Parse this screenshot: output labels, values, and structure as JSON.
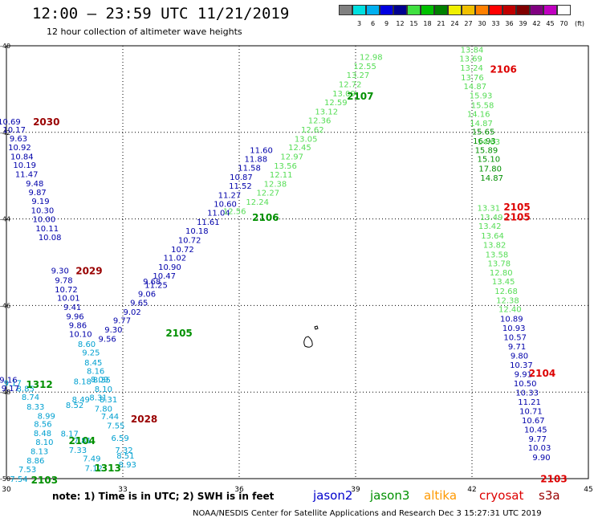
{
  "header": {
    "title": "12:00 — 23:59 UTC 11/21/2019",
    "subtitle": "12 hour collection of altimeter wave heights"
  },
  "scale": {
    "unit": "(ft)",
    "items": [
      {
        "label": "",
        "color": "#808080"
      },
      {
        "label": "3",
        "color": "#00e0e0"
      },
      {
        "label": "6",
        "color": "#00b0f0"
      },
      {
        "label": "9",
        "color": "#0000e0"
      },
      {
        "label": "12",
        "color": "#000090"
      },
      {
        "label": "15",
        "color": "#40e040"
      },
      {
        "label": "18",
        "color": "#00c000"
      },
      {
        "label": "21",
        "color": "#008000"
      },
      {
        "label": "24",
        "color": "#f0f000"
      },
      {
        "label": "27",
        "color": "#f0c000"
      },
      {
        "label": "30",
        "color": "#ff8000"
      },
      {
        "label": "33",
        "color": "#ff0000"
      },
      {
        "label": "36",
        "color": "#c00000"
      },
      {
        "label": "39",
        "color": "#800000"
      },
      {
        "label": "42",
        "color": "#800080"
      },
      {
        "label": "45",
        "color": "#c000c0"
      },
      {
        "label": "70",
        "color": "#ffffff"
      }
    ]
  },
  "note": "note:  1) Time is in UTC;  2) SWH is in feet",
  "satellites": [
    {
      "name": "jason2",
      "color": "#0000cc"
    },
    {
      "name": "jason3",
      "color": "#009000"
    },
    {
      "name": "altika",
      "color": "#ff9900"
    },
    {
      "name": "cryosat",
      "color": "#dd0000"
    },
    {
      "name": "s3a",
      "color": "#990000"
    }
  ],
  "footer": "NOAA/NESDIS Center for Satellite Applications and Research    Dec  3 15:27:31 UTC 2019",
  "chart_data": {
    "type": "scatter",
    "x_ticks": [
      "30",
      "33",
      "36",
      "39",
      "42",
      "45"
    ],
    "y_ticks": [
      "-40",
      "-42",
      "-44",
      "-46",
      "-48",
      "-50"
    ],
    "xlim": [
      30,
      45
    ],
    "ylim": [
      -50,
      -40
    ],
    "grid": true,
    "time_labels": [
      {
        "text": "2030",
        "lon": 31.03,
        "lat": -41.74,
        "color": "#990000"
      },
      {
        "text": "2029",
        "lon": 32.13,
        "lat": -45.19,
        "color": "#990000"
      },
      {
        "text": "2028",
        "lon": 33.55,
        "lat": -48.61,
        "color": "#990000"
      },
      {
        "text": "1312",
        "lon": 30.85,
        "lat": -47.81,
        "color": "#009000"
      },
      {
        "text": "2104",
        "lon": 31.95,
        "lat": -49.11,
        "color": "#009000"
      },
      {
        "text": "1313",
        "lon": 32.61,
        "lat": -49.74,
        "color": "#009000"
      },
      {
        "text": "2103",
        "lon": 30.98,
        "lat": -50.02,
        "color": "#009000"
      },
      {
        "text": "2105",
        "lon": 34.45,
        "lat": -46.62,
        "color": "#009000"
      },
      {
        "text": "2106",
        "lon": 36.68,
        "lat": -43.95,
        "color": "#009000"
      },
      {
        "text": "2107",
        "lon": 39.12,
        "lat": -41.15,
        "color": "#009000"
      },
      {
        "text": "2106",
        "lon": 42.81,
        "lat": -40.53,
        "color": "#dd0000"
      },
      {
        "text": "2105",
        "lon": 43.16,
        "lat": -43.71,
        "color": "#dd0000"
      },
      {
        "text": "2105",
        "lon": 43.16,
        "lat": -43.94,
        "color": "#dd0000"
      },
      {
        "text": "2104",
        "lon": 43.81,
        "lat": -47.55,
        "color": "#dd0000"
      },
      {
        "text": "2103",
        "lon": 44.11,
        "lat": -49.99,
        "color": "#dd0000"
      }
    ],
    "series": [
      {
        "name": "track-w-left",
        "color": "#0000aa",
        "points": [
          [
            30.07,
            -41.74,
            "10.69"
          ],
          [
            30.2,
            -41.93,
            "10.17"
          ],
          [
            30.31,
            -42.13,
            "9.63"
          ],
          [
            30.34,
            -42.34,
            "10.92"
          ],
          [
            30.4,
            -42.55,
            "10.84"
          ],
          [
            30.47,
            -42.75,
            "10.19"
          ],
          [
            30.52,
            -42.96,
            "11.47"
          ],
          [
            30.73,
            -43.17,
            "9.48"
          ],
          [
            30.8,
            -43.38,
            "9.87"
          ],
          [
            30.88,
            -43.58,
            "9.19"
          ],
          [
            30.93,
            -43.79,
            "10.30"
          ],
          [
            30.97,
            -44.0,
            "10.00"
          ],
          [
            31.05,
            -44.21,
            "10.11"
          ],
          [
            31.12,
            -44.42,
            "10.08"
          ],
          [
            31.38,
            -45.19,
            "9.30"
          ],
          [
            31.48,
            -45.41,
            "9.78"
          ],
          [
            31.54,
            -45.62,
            "10.72"
          ],
          [
            31.6,
            -45.82,
            "10.01"
          ],
          [
            31.7,
            -46.03,
            "9.41"
          ],
          [
            31.77,
            -46.24,
            "9.96"
          ],
          [
            31.84,
            -46.45,
            "9.86"
          ],
          [
            31.91,
            -46.65,
            "10.10"
          ]
        ]
      },
      {
        "name": "track-w-cyan",
        "color": "#00a0d0",
        "points": [
          [
            32.07,
            -46.88,
            "8.60"
          ],
          [
            32.18,
            -47.08,
            "9.25"
          ],
          [
            32.24,
            -47.31,
            "8.45"
          ],
          [
            32.3,
            -47.5,
            "8.16"
          ],
          [
            32.4,
            -47.7,
            "8.09"
          ],
          [
            32.46,
            -47.71,
            "8.35"
          ],
          [
            32.5,
            -47.92,
            "8.10"
          ],
          [
            32.37,
            -48.12,
            "8.31"
          ],
          [
            32.63,
            -48.16,
            "8.31"
          ],
          [
            32.5,
            -48.38,
            "7.80"
          ],
          [
            32.67,
            -48.55,
            "7.44"
          ],
          [
            32.82,
            -48.77,
            "7.55"
          ],
          [
            32.93,
            -49.05,
            "6.59"
          ],
          [
            33.03,
            -49.33,
            "7.32"
          ],
          [
            33.07,
            -49.46,
            "8.51"
          ],
          [
            33.12,
            -49.67,
            "8.93"
          ]
        ]
      },
      {
        "name": "track-sw-cyan",
        "color": "#00a0d0",
        "points": [
          [
            30.16,
            -47.78,
            "9.17"
          ],
          [
            30.49,
            -47.91,
            "8.85"
          ],
          [
            30.62,
            -48.11,
            "8.74"
          ],
          [
            30.75,
            -48.33,
            "8.33"
          ],
          [
            31.03,
            -48.54,
            "8.99"
          ],
          [
            30.94,
            -48.73,
            "8.56"
          ],
          [
            30.93,
            -48.94,
            "8.48"
          ],
          [
            30.98,
            -49.15,
            "8.10"
          ],
          [
            30.85,
            -49.36,
            "8.13"
          ],
          [
            30.75,
            -49.57,
            "8.86"
          ],
          [
            30.54,
            -49.78,
            "7.53"
          ],
          [
            30.32,
            -50.0,
            "7.54"
          ],
          [
            31.76,
            -48.29,
            "8.52"
          ],
          [
            31.92,
            -48.16,
            "8.49"
          ],
          [
            31.96,
            -47.75,
            "8.18"
          ],
          [
            31.63,
            -48.95,
            "8.17"
          ],
          [
            31.96,
            -49.11,
            "7.81"
          ],
          [
            31.84,
            -49.33,
            "7.33"
          ],
          [
            32.2,
            -49.53,
            "7.49"
          ],
          [
            32.25,
            -49.75,
            "7.12"
          ]
        ]
      },
      {
        "name": "track-sw-blue",
        "color": "#0000aa",
        "points": [
          [
            30.05,
            -47.71,
            "9.16"
          ],
          [
            30.1,
            -47.9,
            "9.17"
          ]
        ]
      },
      {
        "name": "track-diag-jason2",
        "color": "#0000aa",
        "points": [
          [
            32.6,
            -46.76,
            "9.56"
          ],
          [
            32.76,
            -46.55,
            "9.30"
          ],
          [
            32.98,
            -46.34,
            "9.77"
          ],
          [
            33.24,
            -46.14,
            "9.02"
          ],
          [
            33.42,
            -45.93,
            "9.65"
          ],
          [
            33.62,
            -45.72,
            "9.06"
          ],
          [
            33.86,
            -45.52,
            "11.25"
          ],
          [
            34.07,
            -45.31,
            "10.47"
          ],
          [
            34.21,
            -45.1,
            "10.90"
          ],
          [
            34.34,
            -44.89,
            "11.02"
          ],
          [
            34.54,
            -44.69,
            "10.72"
          ],
          [
            34.72,
            -44.48,
            "10.72"
          ],
          [
            34.91,
            -44.27,
            "10.18"
          ],
          [
            35.2,
            -44.06,
            "11.61"
          ],
          [
            35.47,
            -43.85,
            "11.04"
          ],
          [
            35.64,
            -43.65,
            "10.60"
          ],
          [
            35.75,
            -43.44,
            "11.27"
          ],
          [
            36.03,
            -43.23,
            "11.52"
          ],
          [
            36.05,
            -43.02,
            "10.87"
          ],
          [
            36.26,
            -42.81,
            "11.58"
          ],
          [
            36.43,
            -42.61,
            "11.88"
          ],
          [
            36.57,
            -42.4,
            "11.60"
          ],
          [
            33.75,
            -45.44,
            "9.68"
          ]
        ]
      },
      {
        "name": "track-diag-jason3",
        "color": "#55dd55",
        "points": [
          [
            35.88,
            -43.81,
            "12.56"
          ],
          [
            36.47,
            -43.6,
            "12.24"
          ],
          [
            36.74,
            -43.39,
            "12.27"
          ],
          [
            36.93,
            -43.18,
            "12.38"
          ],
          [
            37.08,
            -42.97,
            "12.11"
          ],
          [
            37.19,
            -42.76,
            "13.56"
          ],
          [
            37.36,
            -42.55,
            "12.97"
          ],
          [
            37.56,
            -42.34,
            "12.45"
          ],
          [
            37.72,
            -42.14,
            "13.05"
          ],
          [
            37.89,
            -41.93,
            "12.62"
          ],
          [
            38.07,
            -41.72,
            "12.36"
          ],
          [
            38.25,
            -41.51,
            "13.12"
          ],
          [
            38.49,
            -41.3,
            "12.59"
          ],
          [
            38.7,
            -41.09,
            "13.09"
          ],
          [
            38.86,
            -40.88,
            "12.72"
          ],
          [
            39.06,
            -40.67,
            "13.27"
          ],
          [
            39.24,
            -40.46,
            "12.55"
          ],
          [
            39.4,
            -40.25,
            "12.98"
          ]
        ]
      },
      {
        "name": "track-e-light",
        "color": "#55dd55",
        "points": [
          [
            42.0,
            -40.08,
            "13.84"
          ],
          [
            41.97,
            -40.29,
            "13.69"
          ],
          [
            41.99,
            -40.5,
            "13.24"
          ],
          [
            42.01,
            -40.72,
            "13.76"
          ],
          [
            42.08,
            -40.93,
            "14.87"
          ],
          [
            42.23,
            -41.14,
            "15.93"
          ],
          [
            42.27,
            -41.36,
            "15.58"
          ],
          [
            42.17,
            -41.57,
            "14.16"
          ],
          [
            42.24,
            -41.78,
            "14.87"
          ],
          [
            42.43,
            -42.21,
            "14.63"
          ],
          [
            42.43,
            -43.74,
            "13.31"
          ],
          [
            42.5,
            -43.95,
            "13.49"
          ],
          [
            42.46,
            -44.16,
            "13.42"
          ],
          [
            42.53,
            -44.38,
            "13.64"
          ],
          [
            42.58,
            -44.59,
            "13.82"
          ],
          [
            42.64,
            -44.81,
            "13.58"
          ],
          [
            42.7,
            -45.02,
            "13.78"
          ],
          [
            42.75,
            -45.23,
            "12.80"
          ],
          [
            42.81,
            -45.44,
            "13.45"
          ],
          [
            42.88,
            -45.66,
            "12.68"
          ],
          [
            42.92,
            -45.87,
            "12.38"
          ],
          [
            42.98,
            -46.08,
            "12.40"
          ]
        ]
      },
      {
        "name": "track-e-green",
        "color": "#009000",
        "points": [
          [
            42.29,
            -41.98,
            "15.65"
          ],
          [
            42.32,
            -42.19,
            "16.93"
          ],
          [
            42.37,
            -42.4,
            "15.89"
          ],
          [
            42.43,
            -42.61,
            "15.10"
          ],
          [
            42.47,
            -42.83,
            "17.80"
          ],
          [
            42.51,
            -43.04,
            "14.87"
          ]
        ]
      },
      {
        "name": "track-e-blue",
        "color": "#0000aa",
        "points": [
          [
            43.02,
            -46.3,
            "10.89"
          ],
          [
            43.08,
            -46.51,
            "10.93"
          ],
          [
            43.11,
            -46.73,
            "10.57"
          ],
          [
            43.16,
            -46.94,
            "9.71"
          ],
          [
            43.22,
            -47.15,
            "9.80"
          ],
          [
            43.27,
            -47.37,
            "10.37"
          ],
          [
            43.32,
            -47.58,
            "9.91"
          ],
          [
            43.37,
            -47.79,
            "10.50"
          ],
          [
            43.42,
            -48.01,
            "10.33"
          ],
          [
            43.48,
            -48.22,
            "11.21"
          ],
          [
            43.52,
            -48.43,
            "10.71"
          ],
          [
            43.58,
            -48.65,
            "10.67"
          ],
          [
            43.64,
            -48.86,
            "10.45"
          ],
          [
            43.69,
            -49.07,
            "9.77"
          ],
          [
            43.74,
            -49.28,
            "10.03"
          ],
          [
            43.79,
            -49.5,
            "9.90"
          ]
        ]
      }
    ]
  }
}
